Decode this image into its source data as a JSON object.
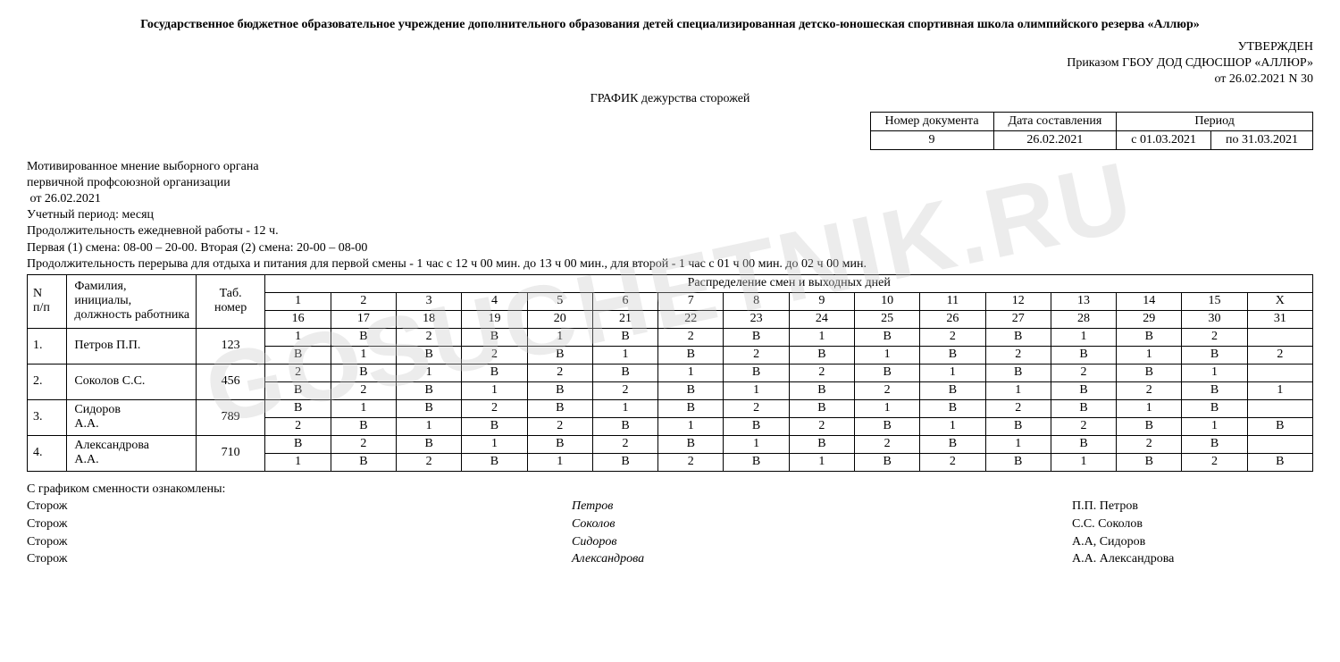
{
  "org_title": "Государственное бюджетное образовательное учреждение дополнительного образования детей специализированная детско-юношеская спортивная школа олимпийского резерва «Аллюр»",
  "approval": {
    "line1": "УТВЕРЖДЕН",
    "line2": "Приказом ГБОУ ДОД СДЮСШОР «АЛЛЮР»",
    "line3": "от 26.02.2021 N 30"
  },
  "doc_title": "ГРАФИК дежурства сторожей",
  "meta": {
    "h_docnum": "Номер документа",
    "h_date": "Дата составления",
    "h_period": "Период",
    "docnum": "9",
    "date": "26.02.2021",
    "period_from": "с 01.03.2021",
    "period_to": "по 31.03.2021"
  },
  "notes": {
    "n1": "Мотивированное мнение выборного органа",
    "n2": "первичной профсоюзной организации",
    "n3": " от 26.02.2021",
    "n4": "Учетный период: месяц",
    "n5": "Продолжительность ежедневной работы - 12 ч.",
    "n6": "Первая (1) смена: 08-00 – 20-00. Вторая (2) смена: 20-00 – 08-00",
    "n7": "Продолжительность перерыва для отдыха и питания для первой смены - 1 час с 12 ч 00 мин. до 13 ч 00 мин., для второй - 1 час с 01 ч 00 мин. до 02 ч 00 мин."
  },
  "headers": {
    "col_n": "N п/п",
    "col_name": "Фамилия, инициалы, должность работника",
    "col_tab": "Таб. номер",
    "col_dist": "Распределение смен и выходных дней",
    "days_r1": [
      "1",
      "2",
      "3",
      "4",
      "5",
      "6",
      "7",
      "8",
      "9",
      "10",
      "11",
      "12",
      "13",
      "14",
      "15",
      "X"
    ],
    "days_r2": [
      "16",
      "17",
      "18",
      "19",
      "20",
      "21",
      "22",
      "23",
      "24",
      "25",
      "26",
      "27",
      "28",
      "29",
      "30",
      "31"
    ]
  },
  "rows": [
    {
      "num": "1.",
      "name": "Петров П.П.",
      "tab": "123",
      "r1": [
        "1",
        "В",
        "2",
        "В",
        "1",
        "В",
        "2",
        "В",
        "1",
        "В",
        "2",
        "В",
        "1",
        "В",
        "2",
        ""
      ],
      "r2": [
        "В",
        "1",
        "В",
        "2",
        "В",
        "1",
        "В",
        "2",
        "В",
        "1",
        "В",
        "2",
        "В",
        "1",
        "В",
        "2"
      ]
    },
    {
      "num": "2.",
      "name": "Соколов С.С.",
      "tab": "456",
      "r1": [
        "2",
        "В",
        "1",
        "В",
        "2",
        "В",
        "1",
        "В",
        "2",
        "В",
        "1",
        "В",
        "2",
        "В",
        "1",
        ""
      ],
      "r2": [
        "В",
        "2",
        "В",
        "1",
        "В",
        "2",
        "В",
        "1",
        "В",
        "2",
        "В",
        "1",
        "В",
        "2",
        "В",
        "1"
      ]
    },
    {
      "num": "3.",
      "name": "Сидоров А.А.",
      "tab": "789",
      "r1": [
        "В",
        "1",
        "В",
        "2",
        "В",
        "1",
        "В",
        "2",
        "В",
        "1",
        "В",
        "2",
        "В",
        "1",
        "В",
        ""
      ],
      "r2": [
        "2",
        "В",
        "1",
        "В",
        "2",
        "В",
        "1",
        "В",
        "2",
        "В",
        "1",
        "В",
        "2",
        "В",
        "1",
        "В"
      ]
    },
    {
      "num": "4.",
      "name": "Александрова А.А.",
      "tab": "710",
      "r1": [
        "В",
        "2",
        "В",
        "1",
        "В",
        "2",
        "В",
        "1",
        "В",
        "2",
        "В",
        "1",
        "В",
        "2",
        "В",
        ""
      ],
      "r2": [
        "1",
        "В",
        "2",
        "В",
        "1",
        "В",
        "2",
        "В",
        "1",
        "В",
        "2",
        "В",
        "1",
        "В",
        "2",
        "В"
      ]
    }
  ],
  "footer": {
    "title": "С графиком сменности ознакомлены:",
    "role": "Сторож",
    "lines": [
      {
        "sign": "Петров",
        "name": "П.П. Петров"
      },
      {
        "sign": "Соколов",
        "name": "С.С. Соколов"
      },
      {
        "sign": "Сидоров",
        "name": "А.А, Сидоров"
      },
      {
        "sign": "Александрова",
        "name": "А.А. Александрова"
      }
    ]
  },
  "watermark": "GOSUCHETNIK.RU"
}
